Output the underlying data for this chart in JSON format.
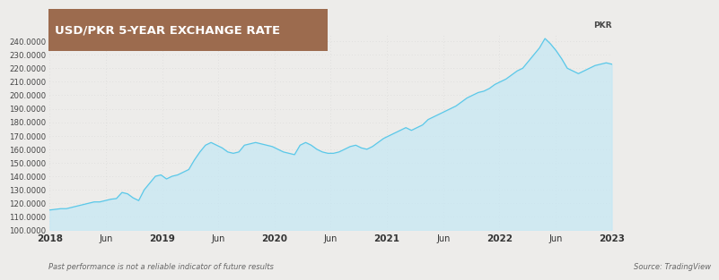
{
  "title": "USD/PKR 5-YEAR EXCHANGE RATE",
  "ylabel": "PKR",
  "footnote_left": "Past performance is not a reliable indicator of future results",
  "footnote_right": "Source: TradingView",
  "background_color": "#edecea",
  "plot_background_color": "#edecea",
  "line_color": "#5bc8e8",
  "fill_color": "#c5e8f5",
  "title_bg_color": "#9c6b4e",
  "title_text_color": "#ffffff",
  "ylim": [
    100,
    245
  ],
  "yticks": [
    100,
    110,
    120,
    130,
    140,
    150,
    160,
    170,
    180,
    190,
    200,
    210,
    220,
    230,
    240
  ],
  "x_labels": [
    "2018",
    "Jun",
    "2019",
    "Jun",
    "2020",
    "Jun",
    "2021",
    "Jun",
    "2022",
    "Jun",
    "2023"
  ],
  "x_positions": [
    0,
    6,
    12,
    18,
    24,
    30,
    36,
    42,
    48,
    54,
    60
  ],
  "data_points": [
    115,
    115.5,
    116,
    116,
    117,
    118,
    119,
    120,
    121,
    121,
    122,
    123,
    123.5,
    128,
    127,
    124,
    122,
    130,
    135,
    140,
    141,
    138,
    140,
    141,
    143,
    145,
    152,
    158,
    163,
    165,
    163,
    161,
    158,
    157,
    158,
    163,
    164,
    165,
    164,
    163,
    162,
    160,
    158,
    157,
    156,
    163,
    165,
    163,
    160,
    158,
    157,
    157,
    158,
    160,
    162,
    163,
    161,
    160,
    162,
    165,
    168,
    170,
    172,
    174,
    176,
    174,
    176,
    178,
    182,
    184,
    186,
    188,
    190,
    192,
    195,
    198,
    200,
    202,
    203,
    205,
    208,
    210,
    212,
    215,
    218,
    220,
    225,
    230,
    235,
    242,
    238,
    233,
    227,
    220,
    218,
    216,
    218,
    220,
    222,
    223,
    224,
    223
  ],
  "dot_grid_color": "#c8c8c8"
}
